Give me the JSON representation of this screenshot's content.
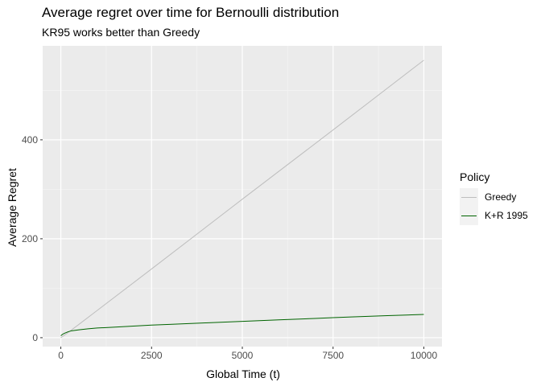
{
  "chart_data": {
    "type": "line",
    "title": "Average regret over time for Bernoulli distribution",
    "subtitle": "KR95 works better than Greedy",
    "xlabel": "Global Time (t)",
    "ylabel": "Average Regret",
    "xlim": [
      -500,
      10500
    ],
    "ylim": [
      -18,
      590
    ],
    "x_ticks": [
      0,
      2500,
      5000,
      7500,
      10000
    ],
    "x_tick_labels": [
      "0",
      "2500",
      "5000",
      "7500",
      "10000"
    ],
    "y_ticks": [
      0,
      200,
      400
    ],
    "y_tick_labels": [
      "0",
      "200",
      "400"
    ],
    "grid": true,
    "legend": {
      "title": "Policy",
      "placement": "right"
    },
    "series": [
      {
        "name": "Greedy",
        "color": "#bebebe",
        "x": [
          0,
          100,
          500,
          1000,
          2500,
          5000,
          7500,
          10000
        ],
        "y": [
          0,
          5,
          27,
          55,
          139,
          280,
          420,
          561
        ]
      },
      {
        "name": "K+R 1995",
        "color": "#006400",
        "x": [
          0,
          50,
          100,
          200,
          300,
          500,
          750,
          1000,
          1500,
          2000,
          2500,
          3000,
          4000,
          5000,
          6000,
          7000,
          7500,
          8000,
          9000,
          10000
        ],
        "y": [
          4,
          7,
          9,
          12,
          14,
          16,
          18,
          19.5,
          21.5,
          23.5,
          25.5,
          27,
          30,
          33,
          36,
          39,
          40.5,
          42,
          44.5,
          47
        ]
      }
    ]
  }
}
